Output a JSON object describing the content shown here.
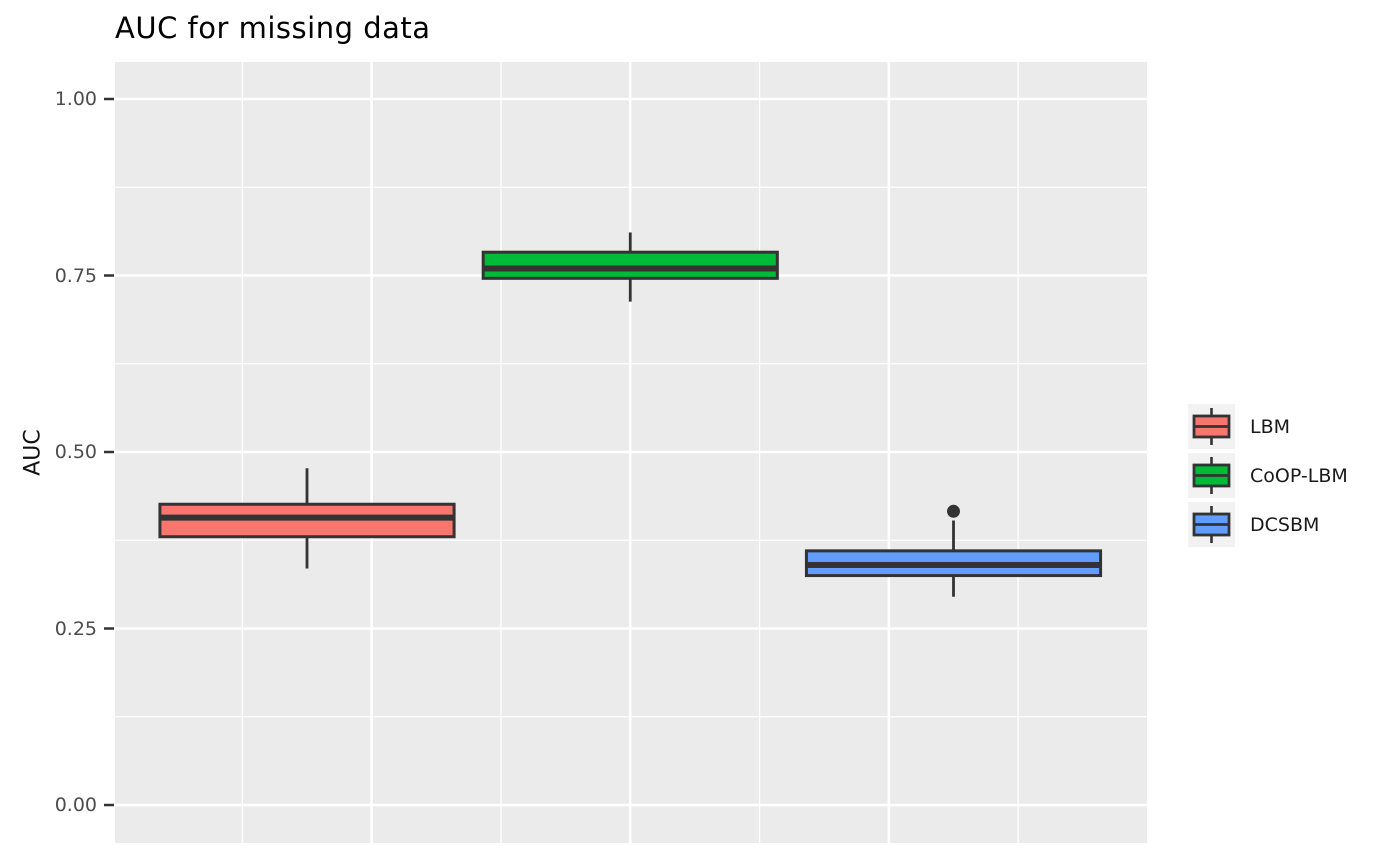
{
  "chart_data": {
    "type": "boxplot",
    "title": "AUC for missing data",
    "ylabel": "AUC",
    "xlabel": "",
    "ylim": [
      -0.0538,
      1.0524
    ],
    "xlim": [
      0.406,
      3.5986
    ],
    "y_ticks": [
      {
        "value": 0.0,
        "label": "0.00"
      },
      {
        "value": 0.25,
        "label": "0.25"
      },
      {
        "value": 0.5,
        "label": "0.50"
      },
      {
        "value": 0.75,
        "label": "0.75"
      },
      {
        "value": 1.0,
        "label": "1.00"
      }
    ],
    "y_minor_gridlines": [
      0.125,
      0.375,
      0.625,
      0.875
    ],
    "x_major_gridlines": [
      1.2,
      2.0,
      2.8
    ],
    "x_minor_gridlines": [
      0.8,
      1.6,
      2.4,
      3.2
    ],
    "box_width_units": 0.91,
    "series": [
      {
        "name": "LBM",
        "color": "#F8766D",
        "x": 1,
        "whisker_low": 0.335,
        "q1": 0.38,
        "median": 0.407,
        "q3": 0.426,
        "whisker_high": 0.477,
        "outliers": []
      },
      {
        "name": "CoOP-LBM",
        "color": "#00BA38",
        "x": 2,
        "whisker_low": 0.713,
        "q1": 0.746,
        "median": 0.76,
        "q3": 0.783,
        "whisker_high": 0.811,
        "outliers": []
      },
      {
        "name": "DCSBM",
        "color": "#619CFF",
        "x": 3,
        "whisker_low": 0.295,
        "q1": 0.325,
        "median": 0.34,
        "q3": 0.36,
        "whisker_high": 0.403,
        "outliers": [
          0.416
        ]
      }
    ],
    "legend": {
      "position": "right",
      "entries": [
        {
          "label": "LBM",
          "color": "#F8766D"
        },
        {
          "label": "CoOP-LBM",
          "color": "#00BA38"
        },
        {
          "label": "DCSBM",
          "color": "#619CFF"
        }
      ]
    },
    "theme": {
      "panel_background": "#EBEBEB",
      "gridline_color": "#FFFFFF",
      "box_border_color": "#333333",
      "outlier_color": "#333333",
      "tick_mark_color": "#333333",
      "tick_label_color": "#4D4D4D",
      "title_color": "#000000",
      "legend_key_background": "#F2F2F2",
      "grid": "on",
      "legend_position": "right"
    }
  }
}
